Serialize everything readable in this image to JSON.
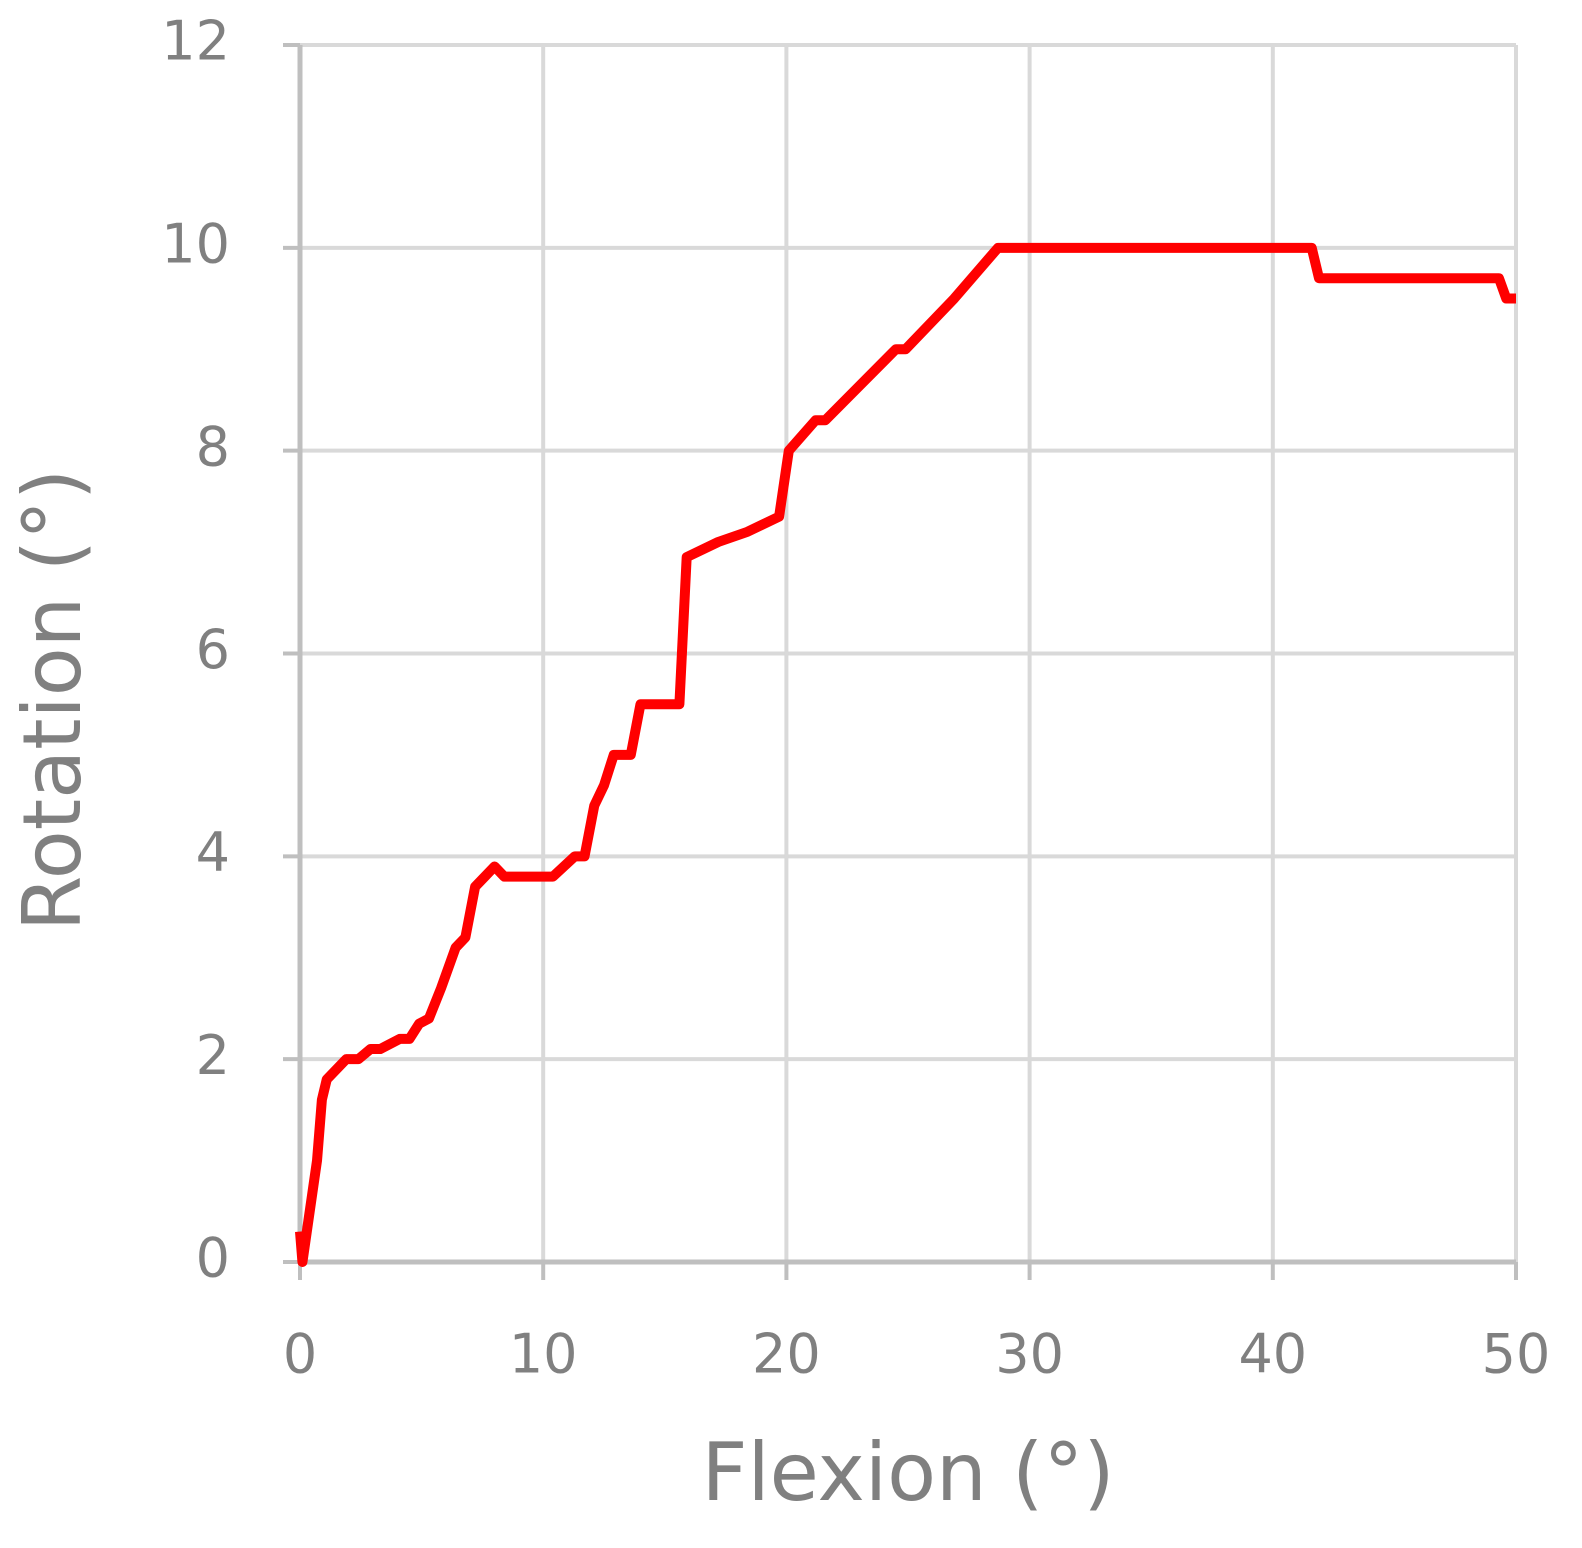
{
  "chart_data": {
    "type": "line",
    "xlabel": "Flexion (°)",
    "ylabel": "Rotation (°)",
    "x": [
      0,
      0.1,
      0.7,
      0.9,
      1.1,
      1.9,
      2.4,
      2.9,
      3.3,
      4.1,
      4.5,
      4.9,
      5.3,
      5.8,
      6.4,
      6.8,
      7.2,
      7.6,
      8.0,
      8.4,
      10.4,
      11.3,
      11.7,
      12.1,
      12.5,
      12.9,
      13.6,
      14.0,
      15.6,
      15.9,
      17.2,
      18.4,
      19.7,
      20.1,
      21.2,
      21.6,
      24.5,
      24.9,
      26.9,
      28.7,
      41.6,
      41.9,
      49.3,
      49.6,
      50
    ],
    "series": [
      {
        "name": "Rotation",
        "color": "#ff0000",
        "values": [
          0.3,
          0,
          1.0,
          1.6,
          1.8,
          2.0,
          2.0,
          2.1,
          2.1,
          2.2,
          2.2,
          2.35,
          2.4,
          2.7,
          3.1,
          3.2,
          3.7,
          3.8,
          3.9,
          3.8,
          3.8,
          4.0,
          4.0,
          4.5,
          4.7,
          5.0,
          5.0,
          5.5,
          5.5,
          6.95,
          7.1,
          7.2,
          7.35,
          8.0,
          8.3,
          8.3,
          9.0,
          9.0,
          9.5,
          10.0,
          10.0,
          9.7,
          9.7,
          9.5,
          9.5
        ]
      }
    ],
    "xlim": [
      0,
      50
    ],
    "xticks": [
      0,
      10,
      20,
      30,
      40,
      50
    ],
    "ylim": [
      0,
      12
    ],
    "yticks": [
      0,
      2,
      4,
      6,
      8,
      10,
      12
    ],
    "grid": true
  }
}
